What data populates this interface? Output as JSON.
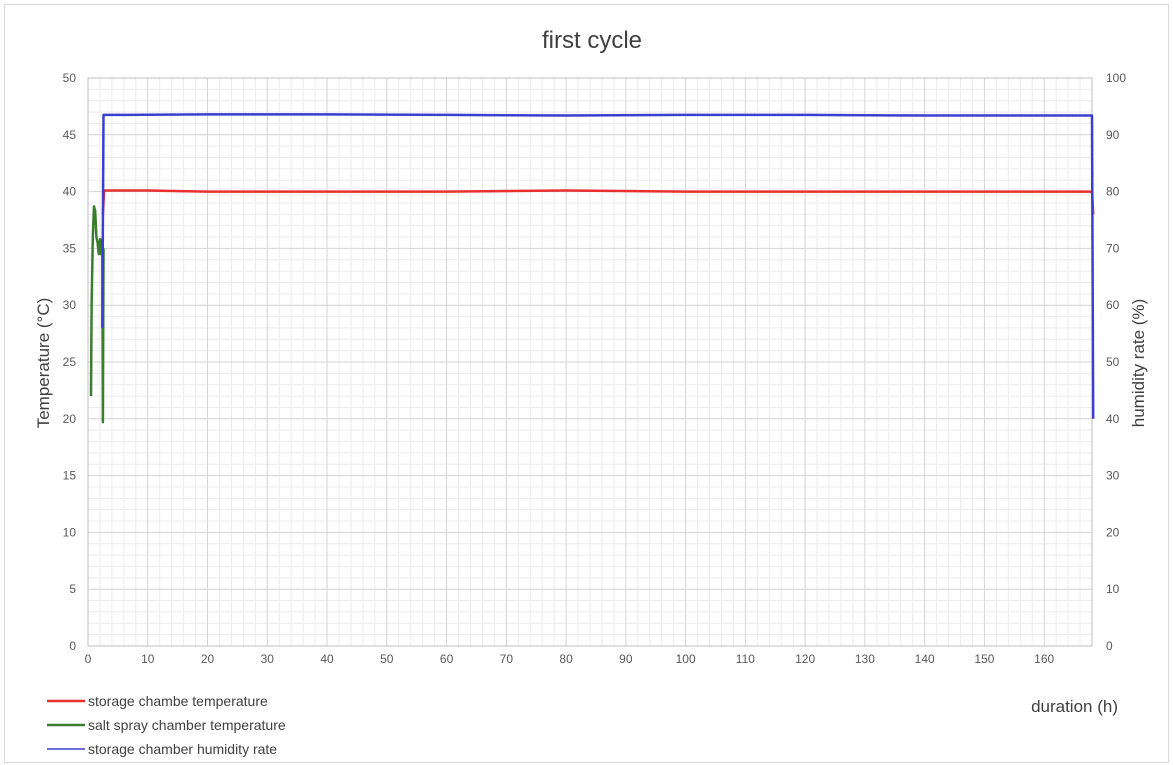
{
  "chart_data": {
    "type": "line",
    "title": "first cycle",
    "xlabel": "duration (h)",
    "ylabel": "Temperature (°C)",
    "y2label": "humidity rate (%)",
    "xlim": [
      0,
      168
    ],
    "ylim": [
      0,
      50
    ],
    "y2lim": [
      0,
      100
    ],
    "x_ticks": [
      "0",
      "10",
      "20",
      "30",
      "40",
      "50",
      "60",
      "70",
      "80",
      "90",
      "100",
      "110",
      "120",
      "130",
      "140",
      "150",
      "160"
    ],
    "x_tick_values": [
      0,
      10,
      20,
      30,
      40,
      50,
      60,
      70,
      80,
      90,
      100,
      110,
      120,
      130,
      140,
      150,
      160
    ],
    "y_ticks": [
      "0",
      "5",
      "10",
      "15",
      "20",
      "25",
      "30",
      "35",
      "40",
      "45",
      "50"
    ],
    "y_tick_values": [
      0,
      5,
      10,
      15,
      20,
      25,
      30,
      35,
      40,
      45,
      50
    ],
    "y2_ticks": [
      "0",
      "10",
      "20",
      "30",
      "40",
      "50",
      "60",
      "70",
      "80",
      "90",
      "100"
    ],
    "y2_tick_values": [
      0,
      10,
      20,
      30,
      40,
      50,
      60,
      70,
      80,
      90,
      100
    ],
    "grid": true,
    "legend_position": "bottom-left",
    "series": [
      {
        "name": "storage chambe temperature",
        "axis": "left",
        "color": "#e8302f",
        "x": [
          2.5,
          2.7,
          5,
          10,
          20,
          40,
          60,
          80,
          100,
          120,
          140,
          160,
          168,
          168.2
        ],
        "y": [
          38,
          40.1,
          40.1,
          40.1,
          40.0,
          40.0,
          40.0,
          40.1,
          40.0,
          40.0,
          40.0,
          40.0,
          40.0,
          38
        ]
      },
      {
        "name": "salt spray chamber temperature",
        "axis": "left",
        "color": "#3a7d2c",
        "x": [
          0.5,
          0.6,
          0.8,
          1.0,
          1.2,
          1.4,
          1.6,
          1.8,
          2.0,
          2.2,
          2.4,
          2.5,
          2.6
        ],
        "y": [
          22,
          30,
          36,
          38.7,
          38.3,
          36,
          35.5,
          34.5,
          35.8,
          34.5,
          35.8,
          19.7,
          35
        ]
      },
      {
        "name": "storage chamber humidity rate",
        "axis": "right",
        "color": "#3a3fcf",
        "x": [
          2.4,
          2.6,
          5,
          20,
          40,
          60,
          80,
          100,
          120,
          140,
          160,
          168,
          168.2
        ],
        "y": [
          56,
          93.5,
          93.5,
          93.6,
          93.6,
          93.5,
          93.4,
          93.5,
          93.5,
          93.4,
          93.4,
          93.4,
          40
        ]
      }
    ]
  }
}
